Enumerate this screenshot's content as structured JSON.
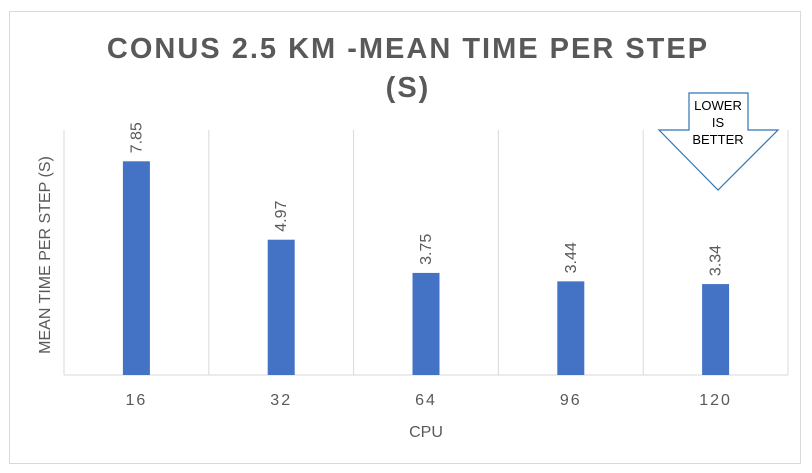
{
  "colors": {
    "bar": "#4472C4",
    "grid": "#d9d9d9",
    "text": "#595959"
  },
  "chart_data": {
    "type": "bar",
    "title_line1": "CONUS 2.5 KM -MEAN TIME PER STEP",
    "title_line2": "(S)",
    "xlabel": "CPU",
    "ylabel": "MEAN TIME PER STEP (S)",
    "categories": [
      "16",
      "32",
      "64",
      "96",
      "120"
    ],
    "values": [
      7.85,
      4.97,
      3.75,
      3.44,
      3.34
    ],
    "data_labels": [
      "7.85",
      "4.97",
      "3.75",
      "3.44",
      "3.34"
    ],
    "ylim": [
      0,
      9
    ],
    "grid": "vertical",
    "legend": "none",
    "annotation": {
      "shape": "down-arrow",
      "lines": [
        "LOWER",
        "IS",
        "BETTER"
      ]
    }
  }
}
